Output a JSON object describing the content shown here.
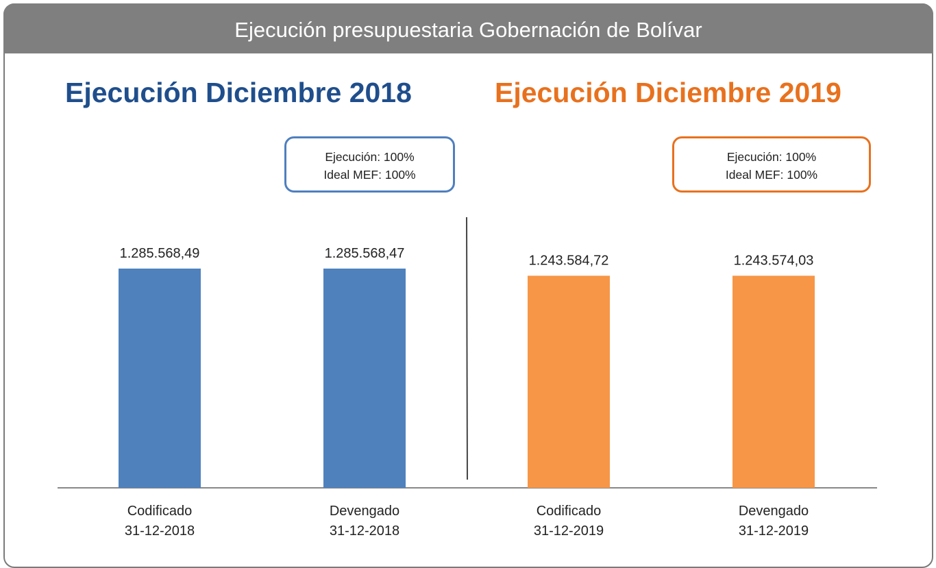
{
  "header": {
    "title": "Ejecución presupuestaria Gobernación de Bolívar"
  },
  "sections": [
    {
      "title": "Ejecución Diciembre 2018",
      "color": "#1f4e8c",
      "box": {
        "line1": "Ejecución: 100%",
        "line2": "Ideal MEF: 100%"
      },
      "box_color": "#4f7fbf"
    },
    {
      "title": "Ejecución Diciembre 2019",
      "color": "#e8711e",
      "box": {
        "line1": "Ejecución: 100%",
        "line2": "Ideal MEF: 100%"
      },
      "box_color": "#e8711e"
    }
  ],
  "chart_data": {
    "type": "bar",
    "title": "Ejecución presupuestaria Gobernación de Bolívar",
    "categories": [
      [
        "Codificado",
        "31-12-2018"
      ],
      [
        "Devengado",
        "31-12-2018"
      ],
      [
        "Codificado",
        "31-12-2019"
      ],
      [
        "Devengado",
        "31-12-2019"
      ]
    ],
    "values": [
      1285568.49,
      1285568.47,
      1243584.72,
      1243574.03
    ],
    "value_labels": [
      "1.285.568,49",
      "1.285.568,47",
      "1.243.584,72",
      "1.243.574,03"
    ],
    "colors": [
      "#4f81bd",
      "#4f81bd",
      "#f79646",
      "#f79646"
    ],
    "ylim": [
      0,
      1300000
    ],
    "grid": false,
    "xlabel": "",
    "ylabel": ""
  }
}
